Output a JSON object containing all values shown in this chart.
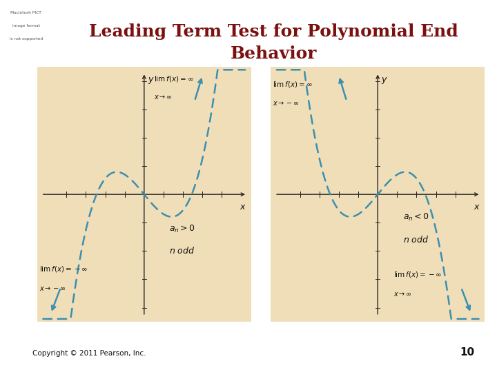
{
  "title_line1": "Leading Term Test for Polynomial End",
  "title_line2": "Behavior",
  "title_color": "#7B1010",
  "title_fontsize": 18,
  "bg_color": "#FFFFFF",
  "panel_bg": "#F0DEB8",
  "curve_color": "#3A8FAF",
  "axis_color": "#222222",
  "text_color": "#111111",
  "copyright_text": "Copyright © 2011 Pearson, Inc.",
  "page_number": "10",
  "mac_box_color": "#D8D8D8",
  "mac_text_color": "#555555"
}
